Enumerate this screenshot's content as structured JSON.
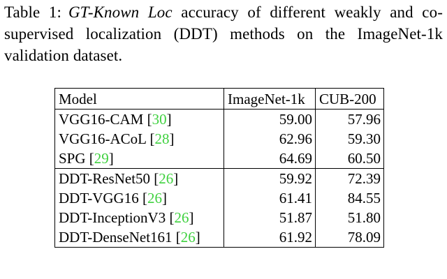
{
  "caption": {
    "label": "Table 1:",
    "emphasis": "GT-Known Loc",
    "text": "accuracy of different weakly and co-supervised localization (DDT) methods on the ImageNet-1k validation dataset."
  },
  "table": {
    "headers": [
      "Model",
      "ImageNet-1k",
      "CUB-200"
    ],
    "groups": [
      {
        "rows": [
          {
            "model": "VGG16-CAM",
            "cite": "30",
            "imagenet": "59.00",
            "cub": "57.96"
          },
          {
            "model": "VGG16-ACoL",
            "cite": "28",
            "imagenet": "62.96",
            "cub": "59.30"
          },
          {
            "model": "SPG",
            "cite": "29",
            "imagenet": "64.69",
            "cub": "60.50"
          }
        ]
      },
      {
        "rows": [
          {
            "model": "DDT-ResNet50",
            "cite": "26",
            "imagenet": "59.92",
            "cub": "72.39"
          },
          {
            "model": "DDT-VGG16",
            "cite": "26",
            "imagenet": "61.41",
            "cub": "84.55"
          },
          {
            "model": "DDT-InceptionV3",
            "cite": "26",
            "imagenet": "51.87",
            "cub": "51.80"
          },
          {
            "model": "DDT-DenseNet161",
            "cite": "26",
            "imagenet": "61.92",
            "cub": "78.09"
          }
        ]
      }
    ]
  },
  "colors": {
    "citation": "#3fd13f",
    "text": "#000000",
    "rule": "#000000"
  }
}
